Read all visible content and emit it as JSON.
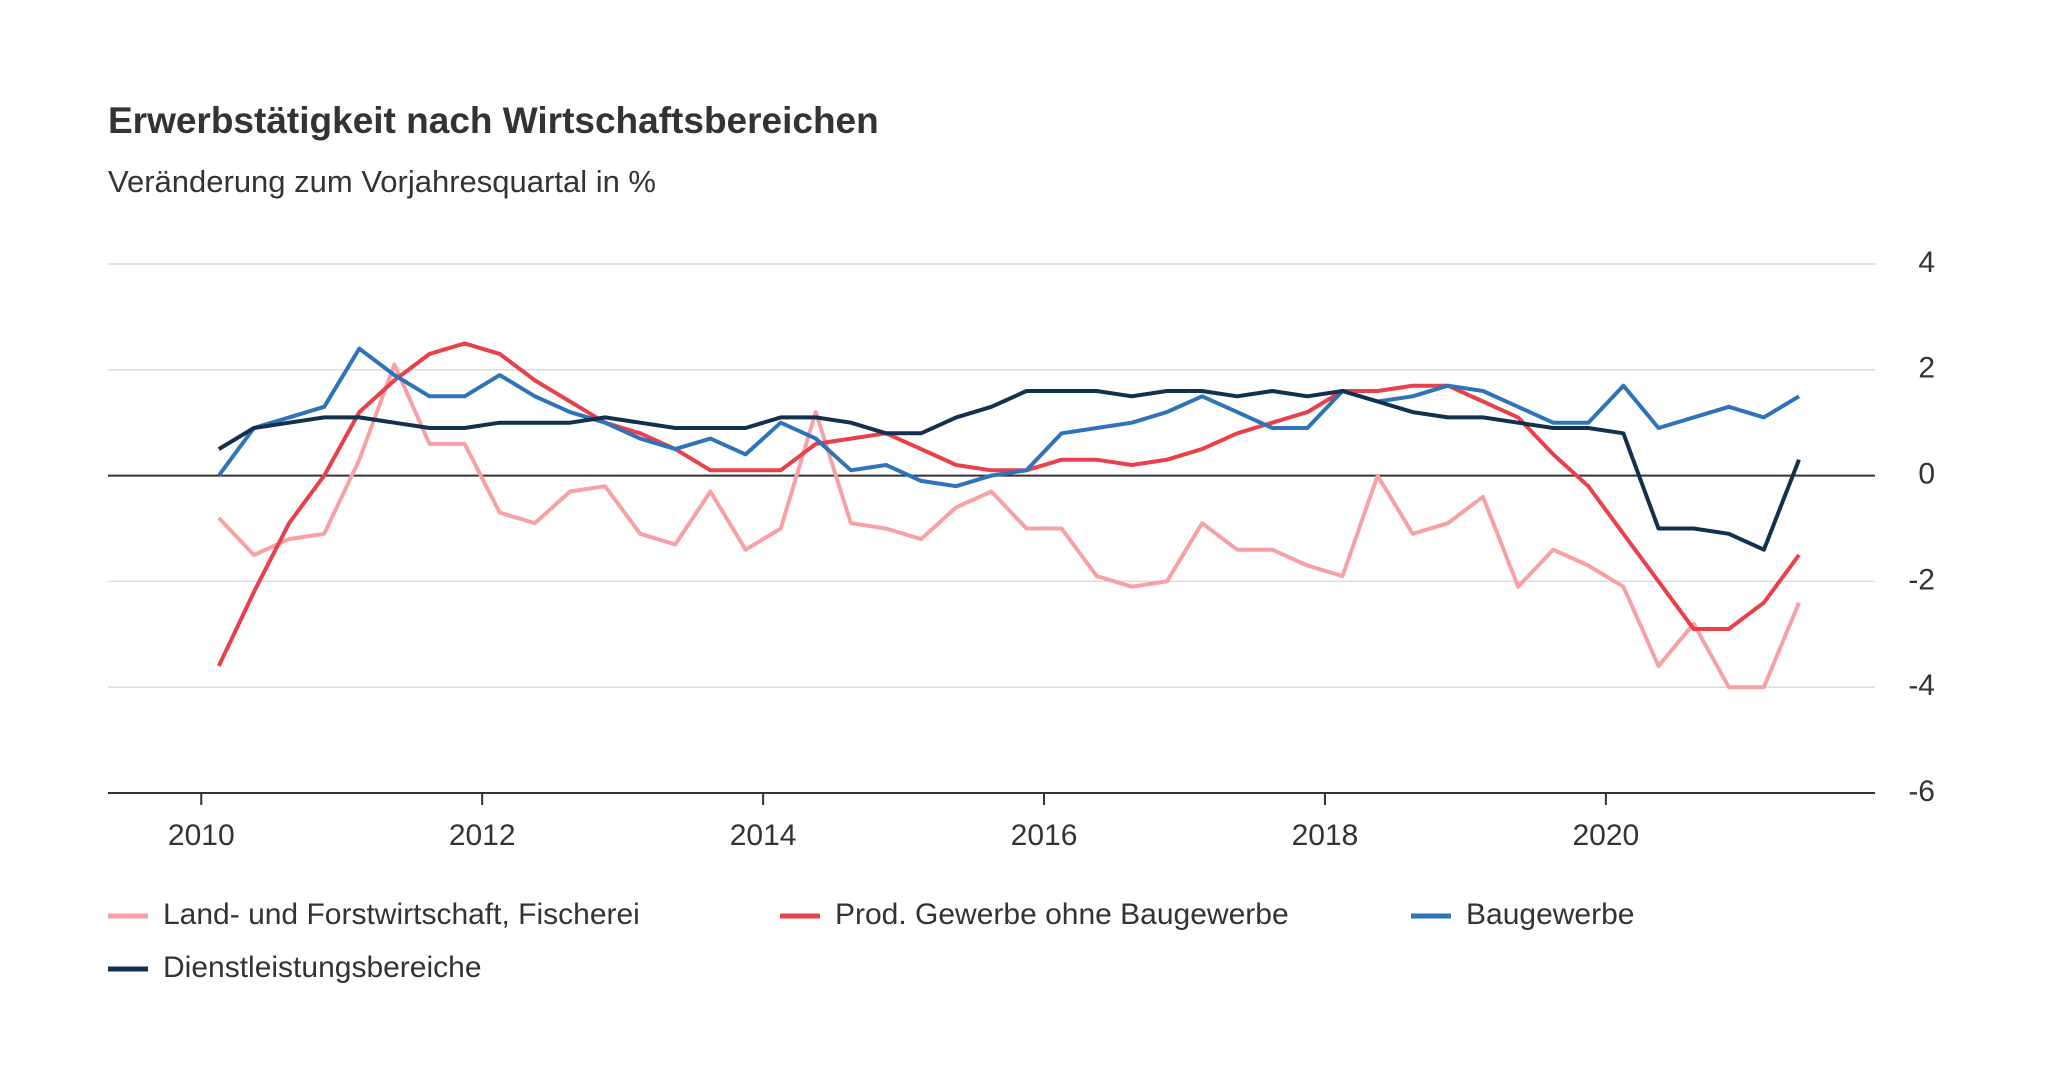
{
  "chart_data": {
    "type": "line",
    "title": "Erwerbstätigkeit nach Wirtschaftsbereichen",
    "subtitle": "Veränderung zum Vorjahresquartal in %",
    "x": [
      2010.125,
      2010.375,
      2010.625,
      2010.875,
      2011.125,
      2011.375,
      2011.625,
      2011.875,
      2012.125,
      2012.375,
      2012.625,
      2012.875,
      2013.125,
      2013.375,
      2013.625,
      2013.875,
      2014.125,
      2014.375,
      2014.625,
      2014.875,
      2015.125,
      2015.375,
      2015.625,
      2015.875,
      2016.125,
      2016.375,
      2016.625,
      2016.875,
      2017.125,
      2017.375,
      2017.625,
      2017.875,
      2018.125,
      2018.375,
      2018.625,
      2018.875,
      2019.125,
      2019.375,
      2019.625,
      2019.875,
      2020.125,
      2020.375,
      2020.625,
      2020.875,
      2021.125,
      2021.375
    ],
    "xlim": [
      2009.336,
      2021.916
    ],
    "xticks": [
      2010,
      2012,
      2014,
      2016,
      2018,
      2020
    ],
    "ylim": [
      -6,
      4
    ],
    "yticks": [
      -6,
      -4,
      -2,
      0,
      2,
      4
    ],
    "grid": true,
    "series": [
      {
        "name": "Land- und Forstwirtschaft, Fischerei",
        "color": "#f7a1a4",
        "values": [
          -0.8,
          -1.5,
          -1.2,
          -1.1,
          0.3,
          2.1,
          0.6,
          0.6,
          -0.7,
          -0.9,
          -0.3,
          -0.2,
          -1.1,
          -1.3,
          -0.3,
          -1.4,
          -1.0,
          1.2,
          -0.9,
          -1.0,
          -1.2,
          -0.6,
          -0.3,
          -1.0,
          -1.0,
          -1.9,
          -2.1,
          -2.0,
          -0.9,
          -1.4,
          -1.4,
          -1.7,
          -1.9,
          0.0,
          -1.1,
          -0.9,
          -0.4,
          -2.1,
          -1.4,
          -1.7,
          -2.1,
          -3.6,
          -2.8,
          -4.0,
          -4.0,
          -2.4
        ]
      },
      {
        "name": "Prod. Gewerbe ohne Baugewerbe",
        "color": "#e8414b",
        "values": [
          -3.6,
          -2.2,
          -0.9,
          0.0,
          1.2,
          1.8,
          2.3,
          2.5,
          2.3,
          1.8,
          1.4,
          1.0,
          0.8,
          0.5,
          0.1,
          0.1,
          0.1,
          0.6,
          0.7,
          0.8,
          0.5,
          0.2,
          0.1,
          0.1,
          0.3,
          0.3,
          0.2,
          0.3,
          0.5,
          0.8,
          1.0,
          1.2,
          1.6,
          1.6,
          1.7,
          1.7,
          1.4,
          1.1,
          0.4,
          -0.2,
          -1.1,
          -2.0,
          -2.9,
          -2.9,
          -2.4,
          -1.5
        ]
      },
      {
        "name": "Baugewerbe",
        "color": "#2f73b8",
        "values": [
          0.0,
          0.9,
          1.1,
          1.3,
          2.4,
          1.9,
          1.5,
          1.5,
          1.9,
          1.5,
          1.2,
          1.0,
          0.7,
          0.5,
          0.7,
          0.4,
          1.0,
          0.7,
          0.1,
          0.2,
          -0.1,
          -0.2,
          0.0,
          0.1,
          0.8,
          0.9,
          1.0,
          1.2,
          1.5,
          1.2,
          0.9,
          0.9,
          1.6,
          1.4,
          1.5,
          1.7,
          1.6,
          1.3,
          1.0,
          1.0,
          1.7,
          0.9,
          1.1,
          1.3,
          1.1,
          1.5
        ]
      },
      {
        "name": "Dienstleistungsbereiche",
        "color": "#14304f",
        "values": [
          0.5,
          0.9,
          1.0,
          1.1,
          1.1,
          1.0,
          0.9,
          0.9,
          1.0,
          1.0,
          1.0,
          1.1,
          1.0,
          0.9,
          0.9,
          0.9,
          1.1,
          1.1,
          1.0,
          0.8,
          0.8,
          1.1,
          1.3,
          1.6,
          1.6,
          1.6,
          1.5,
          1.6,
          1.6,
          1.5,
          1.6,
          1.5,
          1.6,
          1.4,
          1.2,
          1.1,
          1.1,
          1.0,
          0.9,
          0.9,
          0.8,
          -1.0,
          -1.0,
          -1.1,
          -1.4,
          0.3
        ]
      }
    ]
  }
}
